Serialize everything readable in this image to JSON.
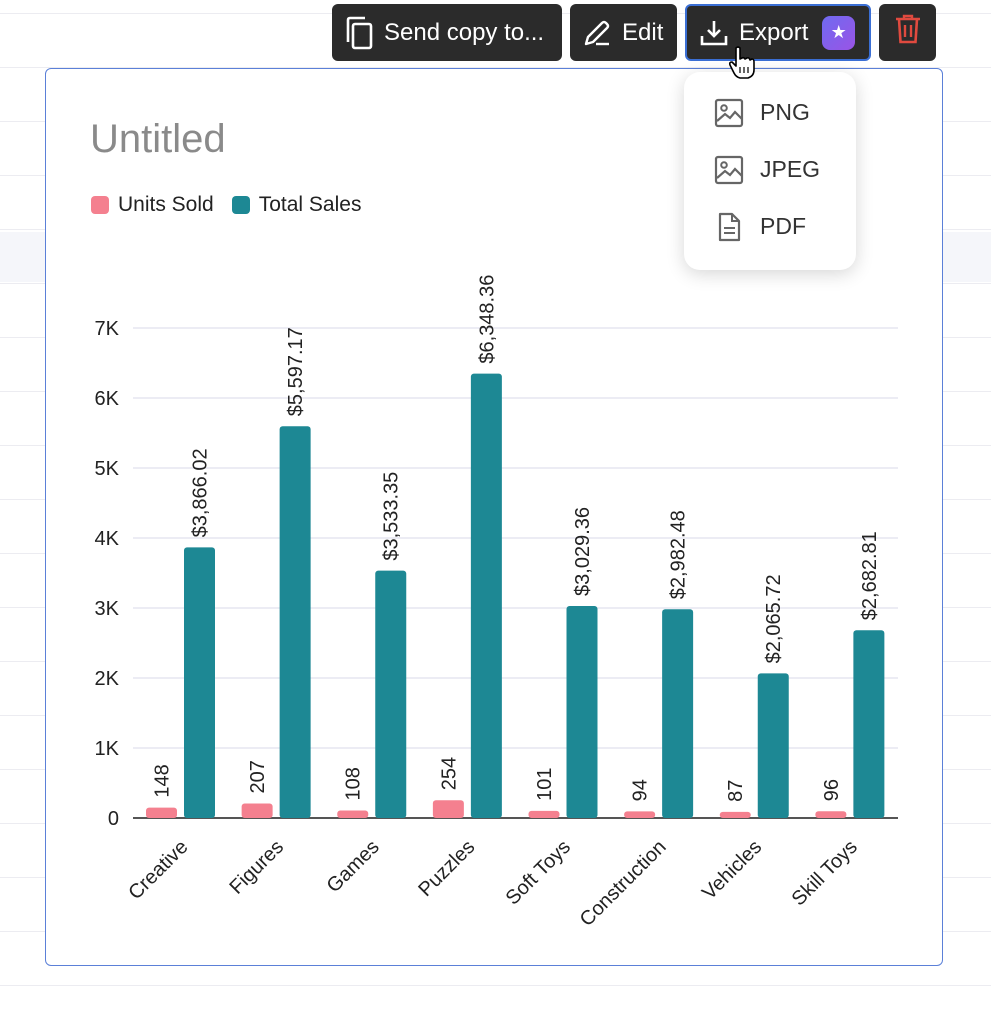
{
  "toolbar": {
    "send_label": "Send copy to...",
    "edit_label": "Edit",
    "export_label": "Export",
    "accent": "#2b2b2b",
    "export_border": "#3b6fd4",
    "delete_color": "#e04a3f"
  },
  "export_menu": {
    "items": [
      {
        "label": "PNG",
        "icon": "image-icon"
      },
      {
        "label": "JPEG",
        "icon": "image-icon"
      },
      {
        "label": "PDF",
        "icon": "document-icon"
      }
    ]
  },
  "chart_data": {
    "type": "bar",
    "title": "Untitled",
    "xlabel": "",
    "ylabel": "",
    "ylim": [
      0,
      7000
    ],
    "yticks": [
      "0",
      "1K",
      "2K",
      "3K",
      "4K",
      "5K",
      "6K",
      "7K"
    ],
    "categories": [
      "Creative",
      "Figures",
      "Games",
      "Puzzles",
      "Soft Toys",
      "Construction",
      "Vehicles",
      "Skill Toys"
    ],
    "series": [
      {
        "name": "Units Sold",
        "color": "#f4808f",
        "values": [
          148,
          207,
          108,
          254,
          101,
          94,
          87,
          96
        ],
        "labels": [
          "148",
          "207",
          "108",
          "254",
          "101",
          "94",
          "87",
          "96"
        ]
      },
      {
        "name": "Total Sales",
        "color": "#1d8894",
        "values": [
          3866.02,
          5597.17,
          3533.35,
          6348.36,
          3029.36,
          2982.48,
          2065.72,
          2682.81
        ],
        "labels": [
          "$3,866.02",
          "$5,597.17",
          "$3,533.35",
          "$6,348.36",
          "$3,029.36",
          "$2,982.48",
          "$2,065.72",
          "$2,682.81"
        ]
      }
    ],
    "grid": true,
    "legend_position": "top-left"
  }
}
